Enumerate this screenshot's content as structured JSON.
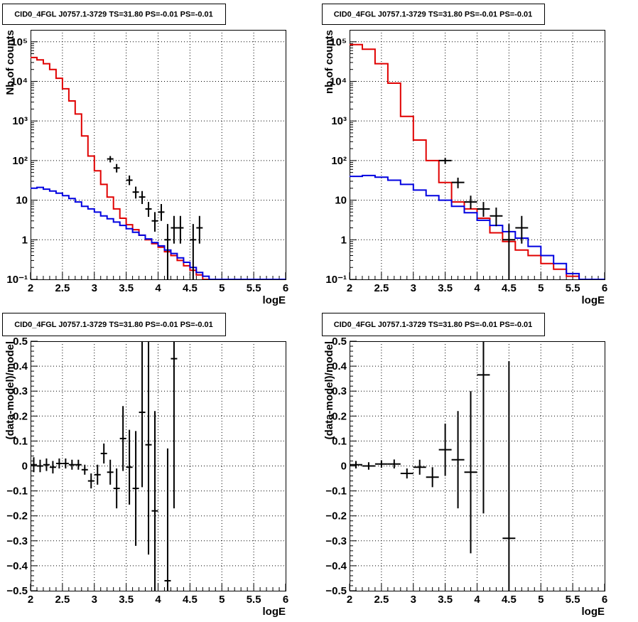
{
  "chart_data": [
    {
      "type": "line",
      "title": "CID0_4FGL J0757.1-3729 TS=31.80 PS=-0.01 PS=-0.01",
      "xlabel": "logE",
      "ylabel": "Nb of counts",
      "xlim": [
        2,
        6
      ],
      "ylim": [
        0.1,
        200000
      ],
      "yscale": "log",
      "grid": true,
      "x_ticks": [
        "2",
        "2.5",
        "3",
        "3.5",
        "4",
        "4.5",
        "5",
        "5.5",
        "6"
      ],
      "y_ticks": [
        "10⁻¹",
        "1",
        "10",
        "10²",
        "10³",
        "10⁴",
        "10⁵"
      ],
      "bin_width": 0.1,
      "series": [
        {
          "color": "#e00000",
          "style": "step",
          "values": [
            40000,
            35000,
            28000,
            20000,
            12000,
            6500,
            3200,
            1500,
            420,
            130,
            55,
            25,
            12,
            6,
            3.5,
            2.4,
            1.8,
            1.3,
            1.0,
            0.8,
            0.65,
            0.5,
            0.4,
            0.3,
            0.22,
            0.17,
            0.13,
            0.1
          ]
        },
        {
          "color": "#0000e0",
          "style": "step",
          "values": [
            20,
            21,
            19,
            17,
            15,
            13,
            11,
            9,
            7,
            6,
            5,
            4,
            3.4,
            2.8,
            2.3,
            1.9,
            1.55,
            1.3,
            1.05,
            0.85,
            0.7,
            0.55,
            0.45,
            0.35,
            0.27,
            0.2,
            0.15,
            0.12,
            0.1,
            0.1,
            0.1,
            0.1,
            0.1,
            0.1,
            0.1,
            0.1,
            0.1,
            0.1,
            0.1,
            0.1
          ]
        },
        {
          "color": "#000000",
          "style": "errorbar",
          "points": [
            {
              "x": 3.25,
              "y": 110,
              "lo": 90,
              "hi": 130
            },
            {
              "x": 3.35,
              "y": 65,
              "lo": 50,
              "hi": 82
            },
            {
              "x": 3.55,
              "y": 32,
              "lo": 24,
              "hi": 42
            },
            {
              "x": 3.65,
              "y": 16,
              "lo": 11,
              "hi": 22
            },
            {
              "x": 3.75,
              "y": 12,
              "lo": 8,
              "hi": 17
            },
            {
              "x": 3.85,
              "y": 6,
              "lo": 3.8,
              "hi": 9
            },
            {
              "x": 3.95,
              "y": 3,
              "lo": 1.6,
              "hi": 5
            },
            {
              "x": 4.05,
              "y": 5,
              "lo": 3,
              "hi": 8
            },
            {
              "x": 4.15,
              "y": 1,
              "lo": 0.1,
              "hi": 2.5
            },
            {
              "x": 4.25,
              "y": 2,
              "lo": 0.8,
              "hi": 4
            },
            {
              "x": 4.35,
              "y": 2,
              "lo": 0.8,
              "hi": 4
            },
            {
              "x": 4.55,
              "y": 1,
              "lo": 0.1,
              "hi": 2.5
            },
            {
              "x": 4.65,
              "y": 2,
              "lo": 0.8,
              "hi": 4
            }
          ]
        }
      ]
    },
    {
      "type": "line",
      "title": "CID0_4FGL J0757.1-3729 TS=31.80 PS=-0.01 PS=-0.01",
      "xlabel": "logE",
      "ylabel": "nb of counts",
      "xlim": [
        2,
        6
      ],
      "ylim": [
        0.1,
        200000
      ],
      "yscale": "log",
      "grid": true,
      "x_ticks": [
        "2",
        "2.5",
        "3",
        "3.5",
        "4",
        "4.5",
        "5",
        "5.5",
        "6"
      ],
      "y_ticks": [
        "10⁻¹",
        "1",
        "10",
        "10²",
        "10³",
        "10⁴",
        "10⁵"
      ],
      "bin_width": 0.2,
      "series": [
        {
          "color": "#e00000",
          "style": "step",
          "values": [
            85000,
            65000,
            28000,
            9000,
            1300,
            330,
            100,
            28,
            9,
            6,
            3.5,
            1.5,
            0.9,
            0.55,
            0.4,
            0.25,
            0.18,
            0.12,
            0.1,
            0.1
          ]
        },
        {
          "color": "#0000e0",
          "style": "step",
          "values": [
            40,
            42,
            38,
            32,
            25,
            18,
            13,
            10,
            7,
            4.8,
            3.1,
            2.3,
            1.6,
            1.1,
            0.68,
            0.4,
            0.25,
            0.14,
            0.1,
            0.1
          ]
        },
        {
          "color": "#000000",
          "style": "errorbar",
          "points": [
            {
              "x": 3.5,
              "y": 100,
              "lo": 82,
              "hi": 118
            },
            {
              "x": 3.7,
              "y": 28,
              "lo": 20,
              "hi": 37
            },
            {
              "x": 3.9,
              "y": 9,
              "lo": 6,
              "hi": 13
            },
            {
              "x": 4.1,
              "y": 6,
              "lo": 3.8,
              "hi": 9
            },
            {
              "x": 4.3,
              "y": 4,
              "lo": 2.2,
              "hi": 6.5
            },
            {
              "x": 4.5,
              "y": 1,
              "lo": 0.1,
              "hi": 2.5
            },
            {
              "x": 4.7,
              "y": 2,
              "lo": 0.8,
              "hi": 4
            }
          ]
        }
      ]
    },
    {
      "type": "scatter",
      "title": "CID0_4FGL J0757.1-3729 TS=31.80 PS=-0.01 PS=-0.01",
      "xlabel": "logE",
      "ylabel": "(data-model)/model",
      "xlim": [
        2,
        6
      ],
      "ylim": [
        -0.5,
        0.5
      ],
      "grid": true,
      "x_ticks": [
        "2",
        "2.5",
        "3",
        "3.5",
        "4",
        "4.5",
        "5",
        "5.5",
        "6"
      ],
      "y_ticks": [
        "−0.5",
        "−0.4",
        "−0.3",
        "−0.2",
        "−0.1",
        "0",
        "0.1",
        "0.2",
        "0.3",
        "0.4",
        "0.5"
      ],
      "x_halfwidth": 0.05,
      "points": [
        {
          "x": 2.05,
          "y": 0.005,
          "err": 0.03
        },
        {
          "x": 2.15,
          "y": 0.0,
          "err": 0.025
        },
        {
          "x": 2.25,
          "y": 0.005,
          "err": 0.025
        },
        {
          "x": 2.35,
          "y": -0.005,
          "err": 0.025
        },
        {
          "x": 2.45,
          "y": 0.01,
          "err": 0.02
        },
        {
          "x": 2.55,
          "y": 0.01,
          "err": 0.02
        },
        {
          "x": 2.65,
          "y": 0.005,
          "err": 0.02
        },
        {
          "x": 2.75,
          "y": 0.005,
          "err": 0.02
        },
        {
          "x": 2.85,
          "y": -0.015,
          "err": 0.02
        },
        {
          "x": 2.95,
          "y": -0.06,
          "err": 0.03
        },
        {
          "x": 3.05,
          "y": -0.035,
          "err": 0.04
        },
        {
          "x": 3.15,
          "y": 0.05,
          "err": 0.04
        },
        {
          "x": 3.25,
          "y": -0.025,
          "err": 0.05
        },
        {
          "x": 3.35,
          "y": -0.09,
          "err": 0.08
        },
        {
          "x": 3.45,
          "y": 0.11,
          "err": 0.13
        },
        {
          "x": 3.55,
          "y": -0.005,
          "err": 0.15
        },
        {
          "x": 3.65,
          "y": -0.09,
          "err": 0.23
        },
        {
          "x": 3.75,
          "y": 0.215,
          "err": 0.3
        },
        {
          "x": 3.85,
          "y": 0.085,
          "err": 0.44
        },
        {
          "x": 3.95,
          "y": -0.18,
          "err": 0.4
        },
        {
          "x": 4.15,
          "y": -0.46,
          "err": 0.53
        },
        {
          "x": 4.25,
          "y": 0.43,
          "err": 0.6
        }
      ]
    },
    {
      "type": "scatter",
      "title": "CID0_4FGL J0757.1-3729 TS=31.80 PS=-0.01 PS=-0.01",
      "xlabel": "logE",
      "ylabel": "(data-model)/model",
      "xlim": [
        2,
        6
      ],
      "ylim": [
        -0.5,
        0.5
      ],
      "grid": true,
      "x_ticks": [
        "2",
        "2.5",
        "3",
        "3.5",
        "4",
        "4.5",
        "5",
        "5.5",
        "6"
      ],
      "y_ticks": [
        "−0.5",
        "−0.4",
        "−0.3",
        "−0.2",
        "−0.1",
        "0",
        "0.1",
        "0.2",
        "0.3",
        "0.4",
        "0.5"
      ],
      "x_halfwidth": 0.1,
      "points": [
        {
          "x": 2.1,
          "y": 0.005,
          "err": 0.015
        },
        {
          "x": 2.3,
          "y": 0.0,
          "err": 0.015
        },
        {
          "x": 2.5,
          "y": 0.008,
          "err": 0.015
        },
        {
          "x": 2.7,
          "y": 0.008,
          "err": 0.018
        },
        {
          "x": 2.9,
          "y": -0.03,
          "err": 0.02
        },
        {
          "x": 3.1,
          "y": -0.005,
          "err": 0.03
        },
        {
          "x": 3.3,
          "y": -0.045,
          "err": 0.04
        },
        {
          "x": 3.5,
          "y": 0.065,
          "err": 0.105
        },
        {
          "x": 3.7,
          "y": 0.025,
          "err": 0.195
        },
        {
          "x": 3.9,
          "y": -0.025,
          "err": 0.325
        },
        {
          "x": 4.1,
          "y": 0.365,
          "err": 0.555
        },
        {
          "x": 4.5,
          "y": -0.29,
          "err": 0.71
        }
      ]
    }
  ]
}
